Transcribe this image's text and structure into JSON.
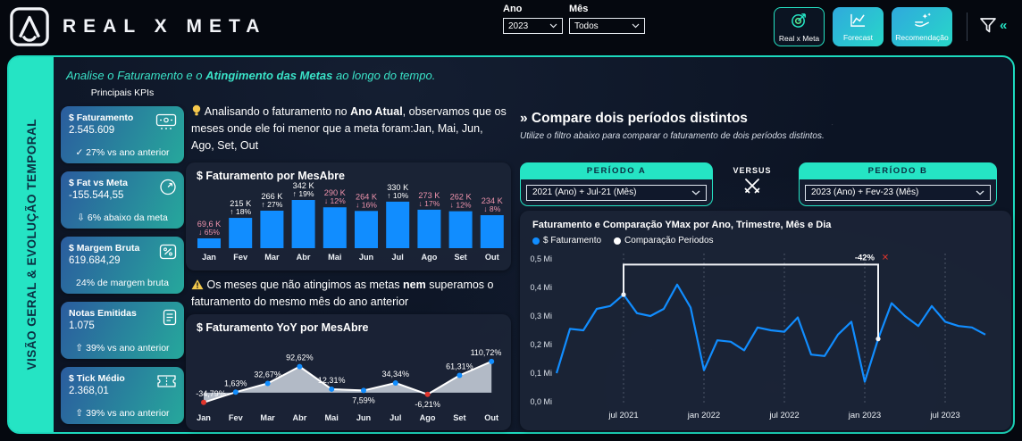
{
  "topbar": {
    "brand": "REAL X META",
    "filters": {
      "ano_label": "Ano",
      "ano_value": "2023",
      "mes_label": "Mês",
      "mes_value": "Todos"
    },
    "nav": [
      {
        "label": "Real x Meta",
        "icon": "target-icon",
        "active": true
      },
      {
        "label": "Forecast",
        "icon": "line-chart-icon",
        "active": false
      },
      {
        "label": "Recomendação",
        "icon": "hand-sparkles-icon",
        "active": false
      }
    ]
  },
  "sidebar": {
    "title": "VISÃO GERAL & EVOLUÇÃO TEMPORAL"
  },
  "page_header": {
    "text_prefix": "Analise o Faturamento e o ",
    "text_bold": "Atingimento das Metas",
    "text_suffix": " ao longo do tempo."
  },
  "kpis": {
    "section_title": "Principais KPIs",
    "cards": [
      {
        "title": "$ Faturamento",
        "value": "2.545.609",
        "icon": "cash-register-icon",
        "footer": "✓ 27% vs ano anterior"
      },
      {
        "title": "$ Fat vs Meta",
        "value": "-155.544,55",
        "icon": "gauge-icon",
        "footer": "⇩ 6% abaixo da meta"
      },
      {
        "title": "$ Margem Bruta",
        "value": "619.684,29",
        "icon": "percent-icon",
        "footer": "24% de margem bruta"
      },
      {
        "title": "Notas Emitidas",
        "value": "1.075",
        "icon": "note-icon",
        "footer": "⇧ 39% vs ano anterior"
      },
      {
        "title": "$ Tick Médio",
        "value": "2.368,01",
        "icon": "ticket-icon",
        "footer": "⇧ 39% vs ano anterior"
      }
    ]
  },
  "insights": {
    "insight1_prefix": "Analisando o faturamento no ",
    "insight1_bold": "Ano Atual",
    "insight1_suffix": ", observamos que os meses onde ele foi menor que a meta foram:Jan, Mai, Jun, Ago, Set, Out",
    "warning_prefix": "Os meses que não atingimos as metas ",
    "warning_bold": "nem",
    "warning_suffix": " superamos o faturamento do mesmo mês do ano anterior"
  },
  "compare": {
    "title": "» Compare dois períodos distintos",
    "subtitle": "Utilize o filtro abaixo para comparar o faturamento de dois períodos distintos.",
    "versus": "VERSUS",
    "period_a": {
      "header": "PERÍODO A",
      "value": "2021 (Ano) + Jul-21 (Mês)"
    },
    "period_b": {
      "header": "PERÍODO B",
      "value": "2023 (Ano) + Fev-23 (Mês)"
    }
  },
  "chart_data": [
    {
      "id": "faturamento_por_mes",
      "type": "bar",
      "title": "$ Faturamento por MesAbre",
      "categories": [
        "Jan",
        "Fev",
        "Mar",
        "Abr",
        "Mai",
        "Jun",
        "Jul",
        "Ago",
        "Set",
        "Out"
      ],
      "values": [
        69.6,
        215,
        266,
        342,
        290,
        264,
        330,
        273,
        262,
        234
      ],
      "unit": "K",
      "value_labels": [
        "69,6 K",
        "215 K",
        "266 K",
        "342 K",
        "290 K",
        "264 K",
        "330 K",
        "273 K",
        "262 K",
        "234 K"
      ],
      "pct_labels": [
        "↓ 65%",
        "↑ 18%",
        "↑ 27%",
        "↑ 19%",
        "↓ 12%",
        "↓ 16%",
        "↑ 10%",
        "↓ 17%",
        "↓ 12%",
        "↓ 8%"
      ],
      "directions": [
        "down",
        "up",
        "up",
        "up",
        "down",
        "down",
        "up",
        "down",
        "down",
        "down"
      ]
    },
    {
      "id": "faturamento_yoy",
      "type": "line-area",
      "title": "$ Faturamento YoY por MesAbre",
      "categories": [
        "Jan",
        "Fev",
        "Mar",
        "Abr",
        "Mai",
        "Jun",
        "Jul",
        "Ago",
        "Set",
        "Out"
      ],
      "values": [
        -34.79,
        1.63,
        32.67,
        92.62,
        12.31,
        7.59,
        34.34,
        -6.21,
        61.31,
        110.72
      ],
      "point_labels": [
        "-34,79%",
        "1,63%",
        "32,67%",
        "92,62%",
        "12,31%",
        "7,59%",
        "34,34%",
        "-6,21%",
        "61,31%",
        "110,72%"
      ],
      "label_side": [
        "above",
        "above",
        "above",
        "above",
        "above",
        "below",
        "above",
        "below",
        "above",
        "above"
      ],
      "ylim": [
        -45,
        120
      ]
    },
    {
      "id": "comparacao_periodos",
      "type": "line",
      "title": "Faturamento e Comparação YMax por Ano, Trimestre, Mês e Dia",
      "legend": [
        {
          "label": "$ Faturamento",
          "color": "#118DFF"
        },
        {
          "label": "Comparação Periodos",
          "color": "#FFFFFF"
        }
      ],
      "ylabel_ticks": [
        "0,0 Mi",
        "0,1 Mi",
        "0,2 Mi",
        "0,3 Mi",
        "0,4 Mi",
        "0,5 Mi"
      ],
      "ylim": [
        0,
        0.5
      ],
      "x_range": {
        "start": "fev 2021",
        "end": "out 2023"
      },
      "values_mi": [
        0.1,
        0.255,
        0.25,
        0.325,
        0.335,
        0.375,
        0.31,
        0.3,
        0.325,
        0.41,
        0.33,
        0.11,
        0.215,
        0.21,
        0.18,
        0.26,
        0.25,
        0.245,
        0.295,
        0.165,
        0.16,
        0.235,
        0.28,
        0.07,
        0.22,
        0.345,
        0.3,
        0.265,
        0.335,
        0.28,
        0.265,
        0.26,
        0.235
      ],
      "x_tick_labels": [
        "jul 2021",
        "jan 2022",
        "jul 2022",
        "jan 2023",
        "jul 2023"
      ],
      "x_tick_indices": [
        5,
        11,
        17,
        23,
        29
      ],
      "annotation": {
        "label": "-42%",
        "from_index": 5,
        "to_index": 24,
        "bracket_top_mi": 0.48,
        "close_icon": "red-x"
      }
    }
  ],
  "colors": {
    "accent_teal": "#25E4C4",
    "bar_blue": "#118DFF",
    "down_pink": "#EE93AC",
    "up_white": "#FFFFFF",
    "negative_red": "#E0352C",
    "area_gray": "#C7CFDB",
    "kpi_gradient_start": "#2B5C9E",
    "kpi_gradient_end": "#26A89C",
    "warning_yellow": "#F2C94C"
  }
}
